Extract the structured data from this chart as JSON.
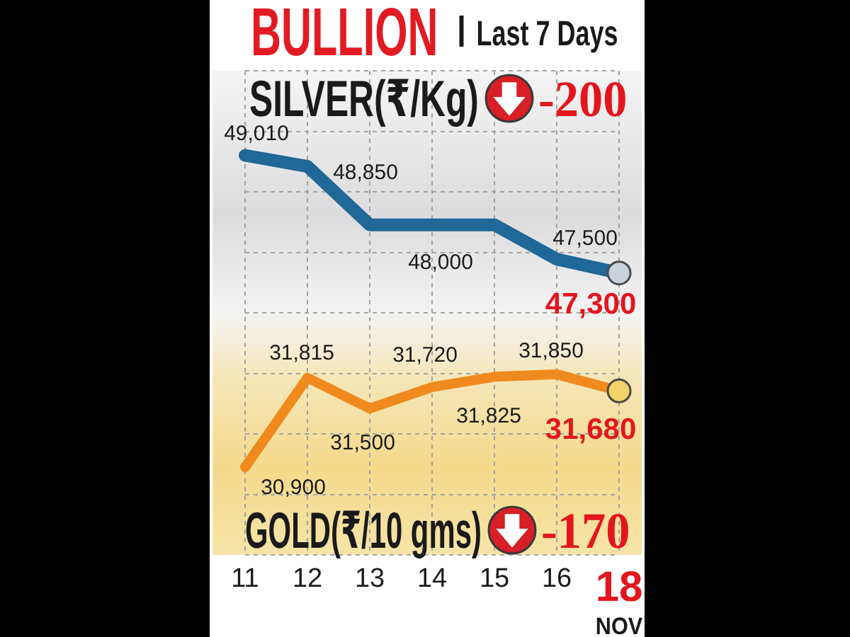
{
  "chart_data": {
    "type": "line",
    "title": "BULLION",
    "subtitle": "Last 7 Days",
    "xlabel": "NOV",
    "categories": [
      "11",
      "12",
      "13",
      "14",
      "15",
      "16",
      "18"
    ],
    "series": [
      {
        "name": "SILVER(₹/Kg)",
        "color": "#1f6898",
        "values": [
          49010,
          48850,
          48000,
          48000,
          48000,
          47500,
          47300
        ],
        "value_labels": [
          "49,010",
          "48,850",
          null,
          "48,000",
          null,
          "47,500",
          "47,300"
        ]
      },
      {
        "name": "GOLD(₹/10 gms)",
        "color": "#f08a1e",
        "axis": "y2",
        "values": [
          30900,
          31815,
          31500,
          31720,
          31825,
          31850,
          31680
        ],
        "value_labels": [
          "30,900",
          "31,815",
          "31,500",
          "31,720",
          "31,825",
          "31,850",
          "31,680"
        ]
      },
      {
        "type": "scatter",
        "color": "#c9d2da",
        "x": [
          "18"
        ],
        "values": [
          47300
        ],
        "marker": "circle"
      },
      {
        "type": "scatter",
        "color": "#f2d36a",
        "x": [
          "18"
        ],
        "values": [
          31680
        ],
        "axis": "y2",
        "marker": "circle"
      }
    ],
    "annotations": [
      "-200",
      "-170"
    ],
    "ylim": [
      43200,
      50240
    ],
    "yticks": [
      {
        "value": 43200,
        "label": null
      },
      {
        "value": 44080,
        "label": null
      },
      {
        "value": 44960,
        "label": null
      },
      {
        "value": 45840,
        "label": null
      },
      {
        "value": 46720,
        "label": null
      },
      {
        "value": 47600,
        "label": null
      },
      {
        "value": 48480,
        "label": null
      },
      {
        "value": 49360,
        "label": null
      },
      {
        "value": 50240,
        "label": null
      }
    ],
    "y2lim": [
      30000,
      34960
    ],
    "grid": true,
    "tick_labels": "x",
    "marker": "none",
    "line_style": "solid"
  }
}
